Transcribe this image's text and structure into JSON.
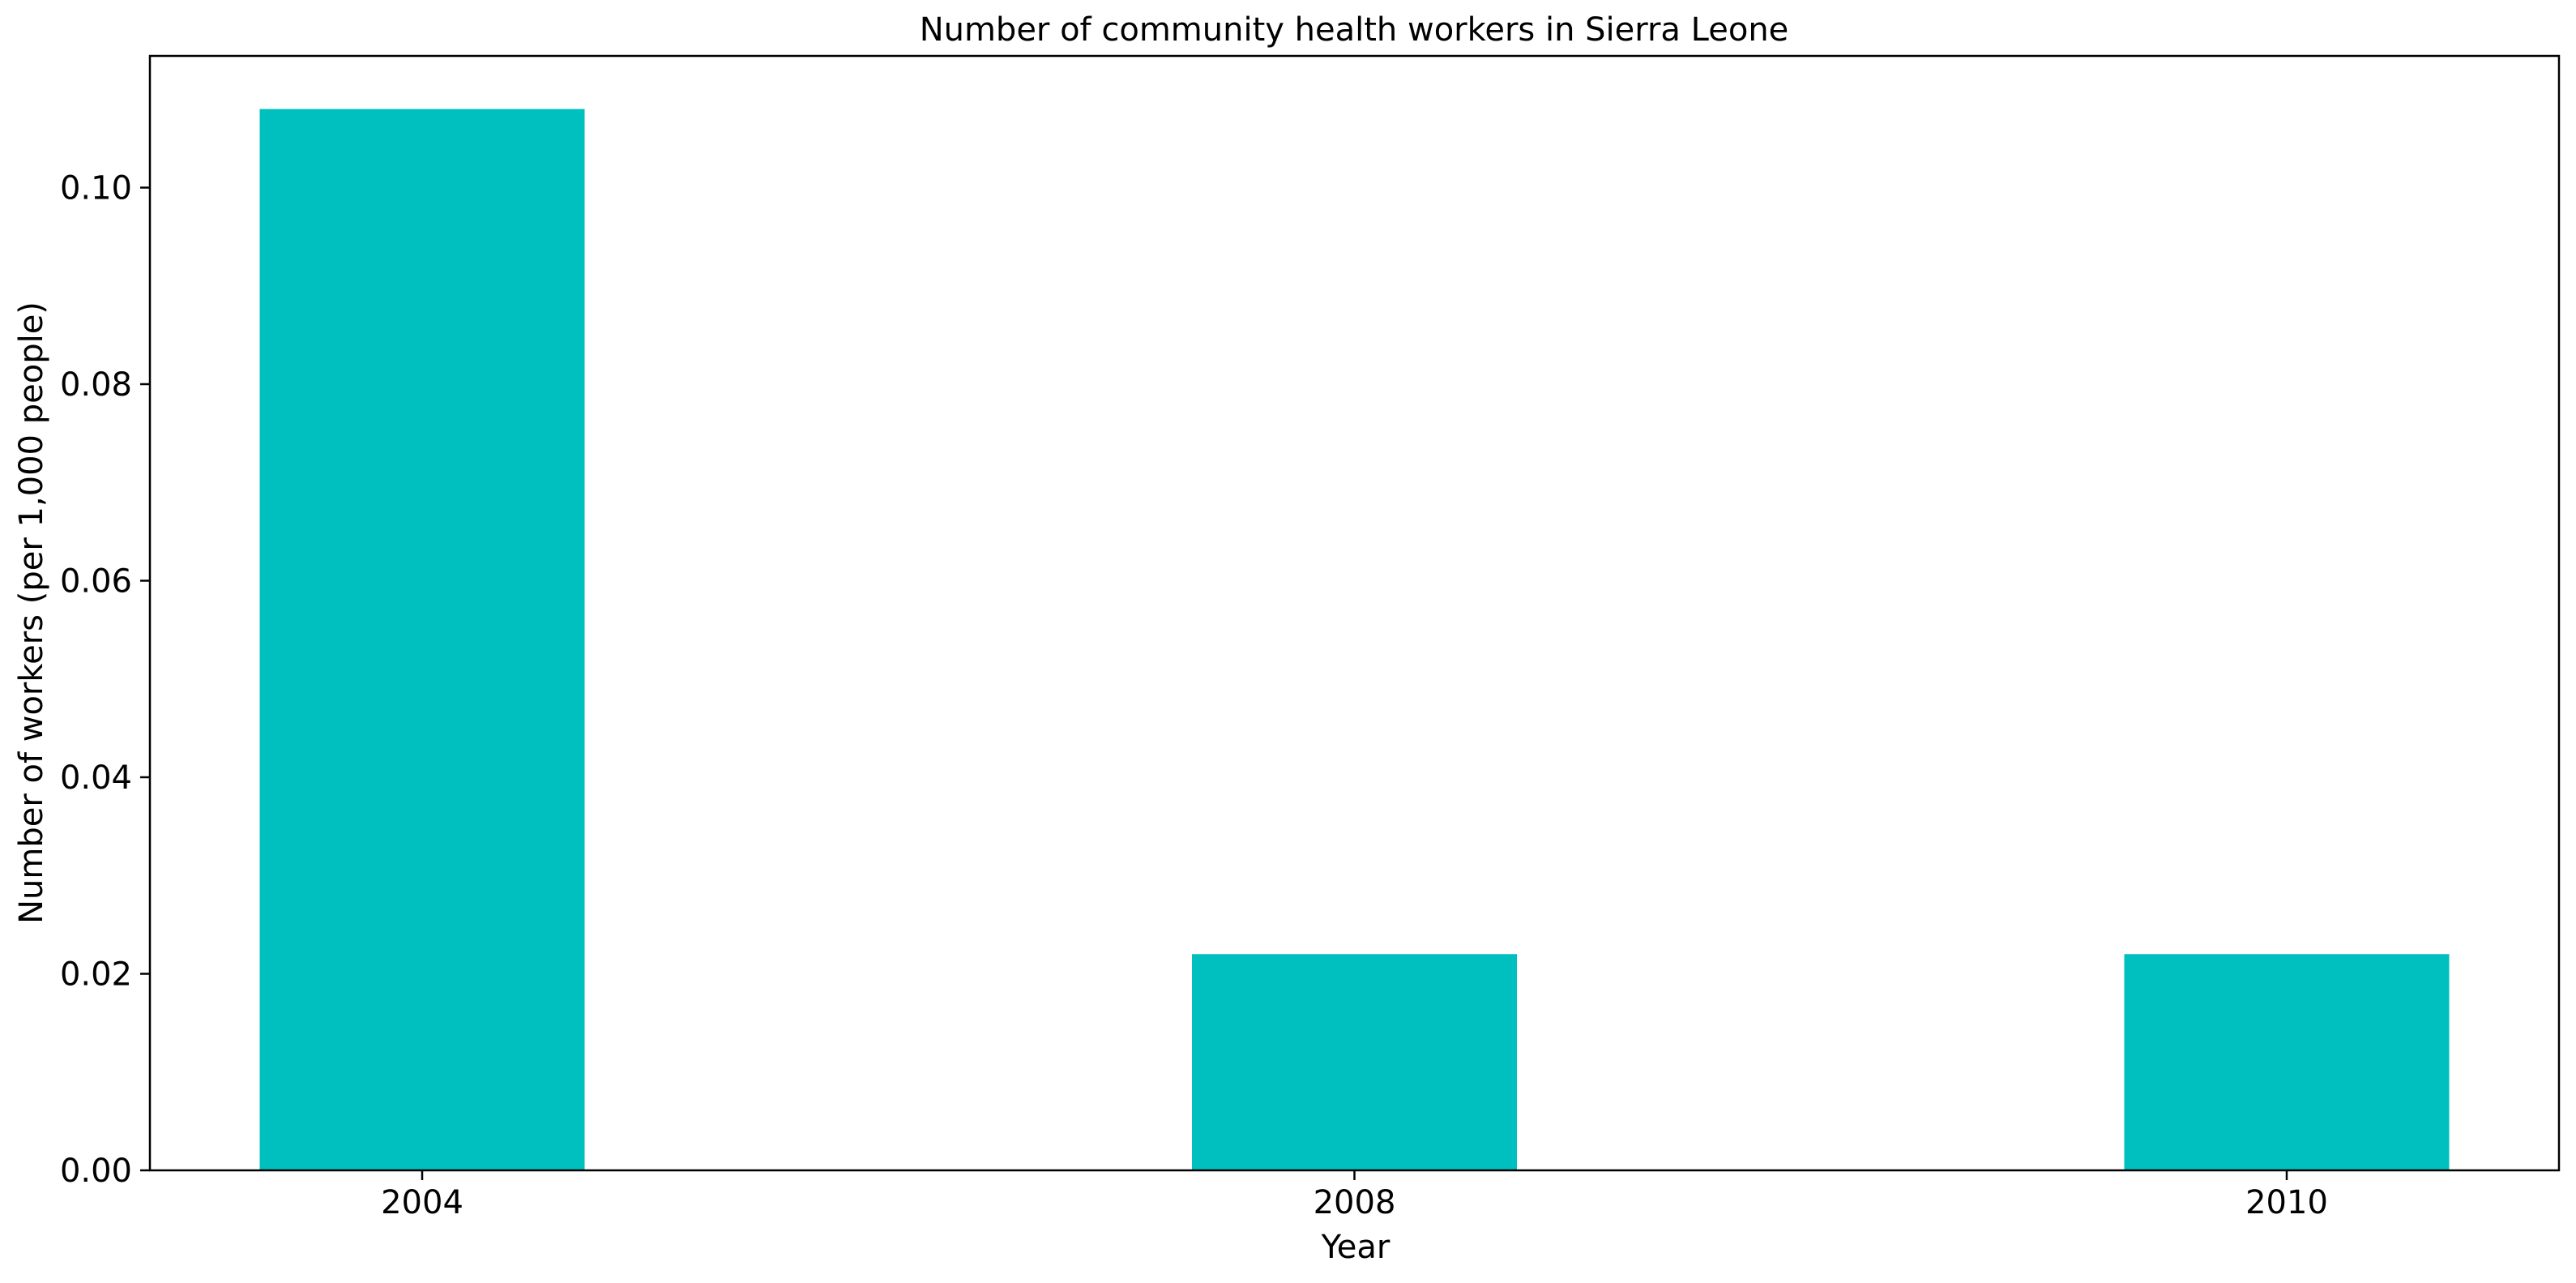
{
  "chart_data": {
    "type": "bar",
    "title": "Number of community health workers in Sierra Leone",
    "xlabel": "Year",
    "ylabel": "Number of workers (per 1,000 people)",
    "categories": [
      "2004",
      "2008",
      "2010"
    ],
    "values": [
      0.108,
      0.022,
      0.022
    ],
    "ylim": [
      0,
      0.1134
    ],
    "yticks": [
      0.0,
      0.02,
      0.04,
      0.06,
      0.08,
      0.1
    ],
    "ytick_labels": [
      "0.00",
      "0.02",
      "0.04",
      "0.06",
      "0.08",
      "0.10"
    ],
    "grid": false,
    "legend": "none",
    "bar_color": "#00bfbf"
  }
}
